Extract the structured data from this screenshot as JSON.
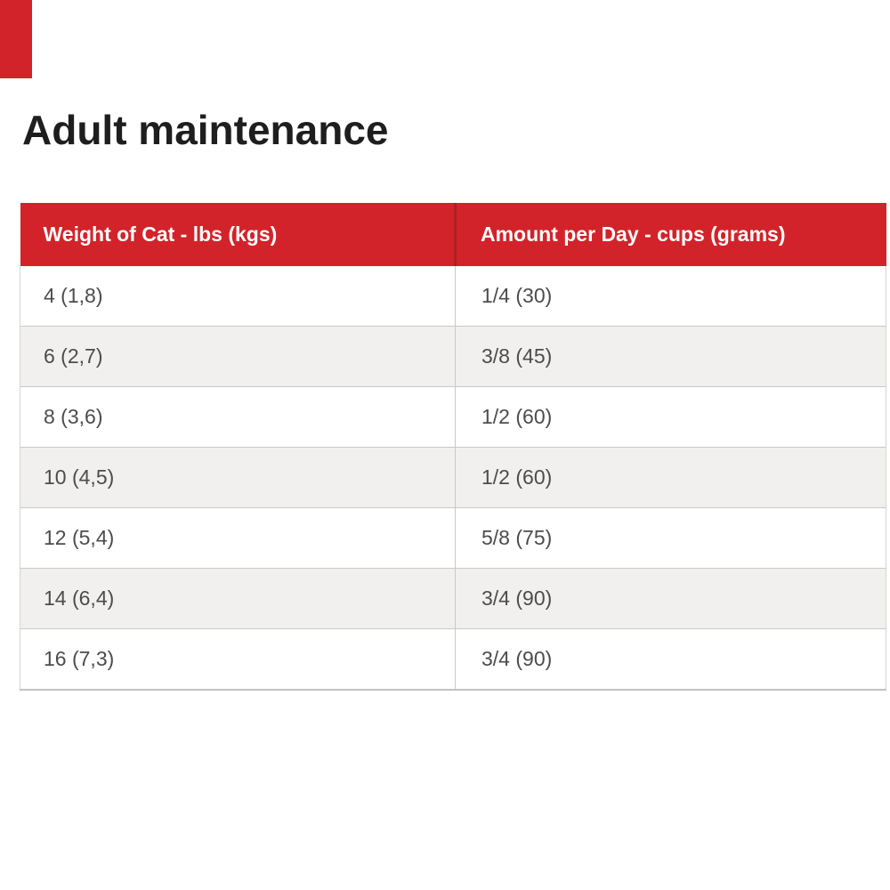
{
  "page": {
    "title": "Adult maintenance"
  },
  "theme": {
    "accent_red": "#d2232a",
    "header_divider_red": "#b01e25",
    "header_text_color": "#ffffff",
    "row_alt_bg": "#f1f0ee",
    "row_border": "#c9c9c9",
    "cell_text_color": "#4c4c4e",
    "title_color": "#1e1e1e",
    "corner_fragment_color": "#d2232a"
  },
  "chart_data": {
    "type": "table",
    "title": "Adult maintenance",
    "columns": [
      "Weight of Cat - lbs (kgs)",
      "Amount per Day - cups (grams)"
    ],
    "rows": [
      [
        "4 (1,8)",
        "1/4 (30)"
      ],
      [
        "6 (2,7)",
        "3/8 (45)"
      ],
      [
        "8 (3,6)",
        "1/2 (60)"
      ],
      [
        "10 (4,5)",
        "1/2 (60)"
      ],
      [
        "12 (5,4)",
        "5/8 (75)"
      ],
      [
        "14 (6,4)",
        "3/4 (90)"
      ],
      [
        "16 (7,3)",
        "3/4 (90)"
      ]
    ]
  }
}
